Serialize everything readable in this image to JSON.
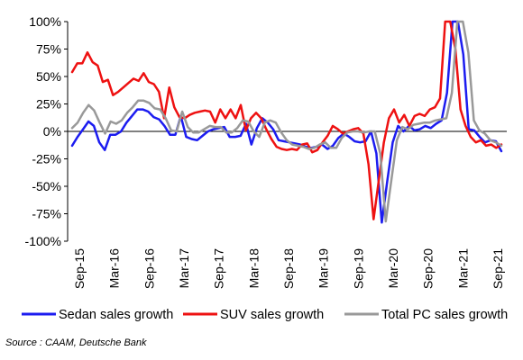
{
  "chart_data": {
    "type": "line",
    "ylim": [
      -100,
      100
    ],
    "y_ticks": [
      100,
      75,
      50,
      25,
      0,
      -25,
      -50,
      -75,
      -100
    ],
    "y_tick_labels": [
      "100%",
      "75%",
      "50%",
      "25%",
      "0%",
      "-25%",
      "-50%",
      "-75%",
      "-100%"
    ],
    "x_tick_labels": [
      "Sep-15",
      "Mar-16",
      "Sep-16",
      "Mar-17",
      "Sep-17",
      "Mar-18",
      "Sep-18",
      "Mar-19",
      "Sep-19",
      "Mar-20",
      "Sep-20",
      "Mar-21",
      "Sep-21"
    ],
    "x_start": "Sep-15",
    "x_end": "Sep-21",
    "series": [
      {
        "name": "Sedan sales growth",
        "color": "#1c1cf0",
        "values": [
          -13,
          -5,
          2,
          9,
          5,
          -10,
          -17,
          -3,
          -3,
          0,
          8,
          14,
          20,
          20,
          18,
          13,
          11,
          5,
          -3,
          -3,
          14,
          -5,
          -7,
          -8,
          -4,
          0,
          2,
          3,
          4,
          -5,
          -5,
          -4,
          7,
          -12,
          3,
          12,
          8,
          2,
          -8,
          -9,
          -10,
          -11,
          -12,
          -14,
          -15,
          -14,
          -12,
          -16,
          -13,
          -6,
          -2,
          -5,
          -9,
          -10,
          -9,
          0,
          -20,
          -83,
          -45,
          -10,
          5,
          0,
          5,
          1,
          2,
          5,
          3,
          7,
          10,
          35,
          100,
          100,
          70,
          2,
          1,
          -5,
          -10,
          -8,
          -9,
          -18
        ],
        "gaps": [
          [
            70,
            72
          ]
        ]
      },
      {
        "name": "SUV sales growth",
        "color": "#ee1111",
        "values": [
          54,
          62,
          62,
          72,
          63,
          60,
          45,
          47,
          33,
          36,
          40,
          44,
          48,
          46,
          53,
          45,
          43,
          36,
          12,
          40,
          22,
          13,
          12,
          15,
          17,
          18,
          19,
          18,
          8,
          20,
          12,
          20,
          12,
          24,
          1,
          12,
          17,
          12,
          2,
          -7,
          -14,
          -16,
          -17,
          -16,
          -17,
          -12,
          -11,
          -19,
          -17,
          -10,
          -4,
          5,
          2,
          -2,
          0,
          2,
          3,
          -2,
          -30,
          -80,
          -45,
          -10,
          12,
          20,
          8,
          15,
          5,
          14,
          16,
          14,
          20,
          22,
          30,
          100,
          100,
          75,
          20,
          5,
          -5,
          -10,
          -8,
          -13,
          -12,
          -15,
          -12
        ],
        "gaps": [
          [
            72,
            74
          ]
        ]
      },
      {
        "name": "Total PC sales growth",
        "color": "#999999",
        "values": [
          3,
          8,
          17,
          24,
          19,
          8,
          -2,
          9,
          7,
          10,
          17,
          22,
          28,
          28,
          26,
          21,
          20,
          12,
          1,
          0,
          18,
          4,
          -1,
          -1,
          2,
          5,
          4,
          4,
          -1,
          -1,
          3,
          10,
          9,
          0,
          -5,
          8,
          10,
          8,
          -1,
          -8,
          -12,
          -13,
          -14,
          -16,
          -15,
          -12,
          -10,
          -15,
          -15,
          -6,
          -1,
          0,
          0,
          -1,
          0,
          0,
          -20,
          -82,
          -45,
          -8,
          4,
          2,
          6,
          7,
          8,
          8,
          10,
          11,
          12,
          35,
          100,
          100,
          72,
          10,
          1,
          -2,
          -8,
          -10,
          -13
        ],
        "gaps": [
          [
            70,
            72
          ]
        ]
      }
    ],
    "legend_position": "bottom",
    "grid": false
  },
  "source_note": "Source : CAAM, Deutsche Bank"
}
